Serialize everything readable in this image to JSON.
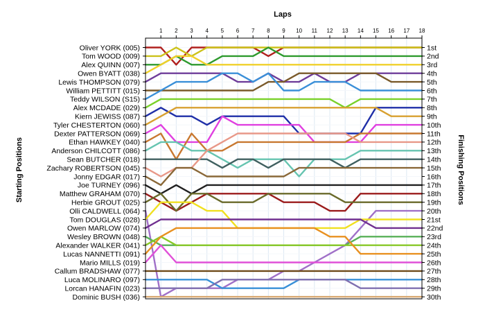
{
  "chart_data": {
    "type": "line",
    "title": "",
    "xlabel": "Laps",
    "ylabel_left": "Starting Positions",
    "ylabel_right": "Finishing Positions",
    "x_ticks": [
      "1",
      "2",
      "3",
      "4",
      "5",
      "6",
      "7",
      "8",
      "9",
      "10",
      "11",
      "12",
      "13",
      "14",
      "15",
      "16",
      "17",
      "18"
    ],
    "starting_labels": [
      "Oliver YORK (005)",
      "Tom WOOD (009)",
      "Alex QUINN (007)",
      "Owen BYATT (038)",
      "Lewis THOMPSON (079)",
      "William PETTITT (015)",
      "Teddy WILSON (S15)",
      "Alex MCDADE (029)",
      "Kiern JEWISS (087)",
      "Tyler CHESTERTON (060)",
      "Dexter PATTERSON (069)",
      "Ethan HAWKEY (040)",
      "Anderson CHILCOTT (086)",
      "Sean BUTCHER (018)",
      "Zachary ROBERTSON (045)",
      "Jonny EDGAR (017)",
      "Joe TURNEY (096)",
      "Matthew GRAHAM (070)",
      "Herbie GROUT (025)",
      "Olli CALDWELL (064)",
      "Tom DOUGLAS (028)",
      "Owen MARLOW (074)",
      "Wesley BROWN (048)",
      "Alexander WALKER (041)",
      "Lucas NANNETTI (091)",
      "Mario MILLS (019)",
      "Callum BRADSHAW (077)",
      "Luca MOLINARO (097)",
      "Lorcan HANAFIN (023)",
      "Dominic BUSH (036)"
    ],
    "finishing_labels": [
      "1st",
      "2nd",
      "3rd",
      "4th",
      "5th",
      "6th",
      "7th",
      "8th",
      "9th",
      "10th",
      "11th",
      "12th",
      "13th",
      "14th",
      "15th",
      "16th",
      "17th",
      "18th",
      "19th",
      "20th",
      "21st",
      "22nd",
      "23rd",
      "24th",
      "25th",
      "26th",
      "27th",
      "28th",
      "29th",
      "30th"
    ],
    "colors": {
      "frame": "#000000",
      "grid": "#dde8f3"
    },
    "series": [
      {
        "color": "#b0201e",
        "positions": [
          1,
          1,
          3,
          1,
          1,
          1,
          1,
          1,
          2,
          1,
          1,
          1,
          1,
          1,
          1,
          1,
          1,
          1,
          1
        ]
      },
      {
        "color": "#ccc21a",
        "positions": [
          2,
          2,
          1,
          2,
          1,
          1,
          1,
          1,
          1,
          1,
          1,
          1,
          1,
          1,
          1,
          1,
          1,
          1,
          1
        ]
      },
      {
        "color": "#2e9a2e",
        "positions": [
          3,
          3,
          2,
          3,
          3,
          2,
          2,
          2,
          1,
          2,
          2,
          2,
          2,
          2,
          2,
          2,
          2,
          2,
          2
        ]
      },
      {
        "color": "#f0d02a",
        "positions": [
          4,
          3,
          2,
          2,
          3,
          3,
          3,
          3,
          3,
          3,
          3,
          3,
          3,
          3,
          3,
          3,
          3,
          3,
          3
        ]
      },
      {
        "color": "#6f3d9a",
        "positions": [
          5,
          4,
          4,
          4,
          4,
          4,
          5,
          5,
          4,
          5,
          5,
          4,
          5,
          5,
          4,
          4,
          4,
          4,
          4
        ]
      },
      {
        "color": "#7a5a2a",
        "positions": [
          6,
          6,
          6,
          6,
          6,
          6,
          6,
          6,
          5,
          5,
          4,
          4,
          4,
          4,
          4,
          4,
          5,
          5,
          5
        ]
      },
      {
        "color": "#3a8fd8",
        "positions": [
          7,
          6,
          5,
          5,
          5,
          4,
          4,
          5,
          4,
          6,
          6,
          5,
          5,
          5,
          6,
          6,
          6,
          6,
          6
        ]
      },
      {
        "color": "#7ad12a",
        "positions": [
          8,
          7,
          7,
          7,
          7,
          7,
          7,
          7,
          7,
          7,
          7,
          7,
          7,
          8,
          7,
          7,
          7,
          7,
          7
        ]
      },
      {
        "color": "#1f2fa8",
        "positions": [
          9,
          8,
          9,
          9,
          10,
          9,
          9,
          9,
          9,
          9,
          11,
          11,
          11,
          11,
          11,
          8,
          8,
          8,
          8
        ]
      },
      {
        "color": "#d8a030",
        "positions": [
          10,
          9,
          8,
          8,
          8,
          8,
          8,
          8,
          8,
          8,
          8,
          8,
          8,
          8,
          8,
          8,
          9,
          9,
          9
        ]
      },
      {
        "color": "#e040e0",
        "positions": [
          11,
          10,
          12,
          12,
          12,
          9,
          10,
          10,
          10,
          10,
          10,
          12,
          12,
          12,
          12,
          10,
          10,
          10,
          10
        ]
      },
      {
        "color": "#c87830",
        "positions": [
          12,
          11,
          14,
          11,
          13,
          13,
          12,
          12,
          12,
          12,
          12,
          12,
          12,
          12,
          11,
          11,
          11,
          11,
          11
        ]
      },
      {
        "color": "#66c4b0",
        "positions": [
          13,
          12,
          12,
          13,
          13,
          14,
          15,
          14,
          14,
          14,
          16,
          14,
          14,
          14,
          13,
          13,
          13,
          13,
          13
        ]
      },
      {
        "color": "#406060",
        "positions": [
          14,
          14,
          14,
          14,
          14,
          15,
          14,
          14,
          15,
          14,
          14,
          14,
          14,
          15,
          14,
          14,
          14,
          14,
          14
        ]
      },
      {
        "color": "#e89888",
        "positions": [
          15,
          16,
          15,
          15,
          13,
          12,
          11,
          11,
          11,
          11,
          11,
          11,
          11,
          11,
          12,
          12,
          12,
          12,
          12
        ]
      },
      {
        "color": "#8a6838",
        "positions": [
          16,
          17,
          15,
          15,
          16,
          16,
          16,
          16,
          16,
          16,
          15,
          15,
          15,
          15,
          15,
          15,
          15,
          15,
          15
        ]
      },
      {
        "color": "#202020",
        "positions": [
          17,
          18,
          17,
          18,
          17,
          17,
          17,
          17,
          17,
          17,
          17,
          17,
          17,
          17,
          17,
          17,
          17,
          17,
          17
        ]
      },
      {
        "color": "#9b1c1c",
        "positions": [
          18,
          19,
          20,
          19,
          18,
          18,
          18,
          18,
          18,
          19,
          19,
          19,
          20,
          20,
          18,
          18,
          18,
          18,
          18
        ]
      },
      {
        "color": "#6a6a2a",
        "positions": [
          19,
          18,
          20,
          18,
          18,
          19,
          19,
          19,
          18,
          18,
          18,
          18,
          18,
          19,
          19,
          19,
          19,
          19,
          19
        ]
      },
      {
        "color": "#a070c8",
        "positions": [
          20,
          30,
          29,
          29,
          29,
          29,
          28,
          28,
          28,
          27,
          27,
          26,
          25,
          24,
          22,
          20,
          20,
          20,
          20
        ]
      },
      {
        "color": "#f0e020",
        "positions": [
          21,
          19,
          19,
          19,
          20,
          20,
          22,
          22,
          22,
          22,
          22,
          22,
          22,
          22,
          21,
          21,
          21,
          21,
          21
        ]
      },
      {
        "color": "#703090",
        "positions": [
          22,
          21,
          21,
          21,
          21,
          21,
          21,
          21,
          21,
          21,
          21,
          21,
          21,
          21,
          21,
          22,
          22,
          22,
          22
        ]
      },
      {
        "color": "#58b058",
        "positions": [
          23,
          24,
          24,
          24,
          24,
          24,
          24,
          24,
          24,
          24,
          24,
          24,
          24,
          24,
          23,
          23,
          23,
          23,
          23
        ]
      },
      {
        "color": "#88c828",
        "positions": [
          24,
          23,
          24,
          24,
          24,
          24,
          24,
          24,
          24,
          24,
          24,
          24,
          24,
          24,
          24,
          24,
          24,
          24,
          24
        ]
      },
      {
        "color": "#e89020",
        "positions": [
          25,
          23,
          22,
          22,
          22,
          22,
          22,
          22,
          22,
          22,
          22,
          22,
          23,
          23,
          25,
          25,
          25,
          25,
          25
        ]
      },
      {
        "color": "#e050d8",
        "positions": [
          26,
          24,
          26,
          26,
          26,
          26,
          26,
          26,
          26,
          26,
          26,
          26,
          26,
          26,
          26,
          26,
          26,
          26,
          26
        ]
      },
      {
        "color": "#6e4a1a",
        "positions": [
          27,
          27,
          27,
          27,
          27,
          27,
          27,
          27,
          27,
          27,
          27,
          27,
          27,
          27,
          27,
          27,
          27,
          27,
          27
        ]
      },
      {
        "color": "#3890d8",
        "positions": [
          28,
          28,
          28,
          28,
          28,
          29,
          29,
          29,
          29,
          29,
          28,
          28,
          28,
          28,
          28,
          28,
          28,
          28,
          28
        ]
      },
      {
        "color": "#8070b0",
        "positions": [
          29,
          29,
          29,
          29,
          29,
          28,
          28,
          28,
          28,
          28,
          28,
          28,
          28,
          28,
          29,
          29,
          29,
          29,
          29
        ]
      },
      {
        "color": "#d8a870",
        "positions": [
          30,
          30,
          30,
          30,
          30,
          30,
          30,
          30,
          30,
          30,
          30,
          30,
          30,
          30,
          30,
          30,
          30,
          30,
          30
        ]
      }
    ]
  }
}
